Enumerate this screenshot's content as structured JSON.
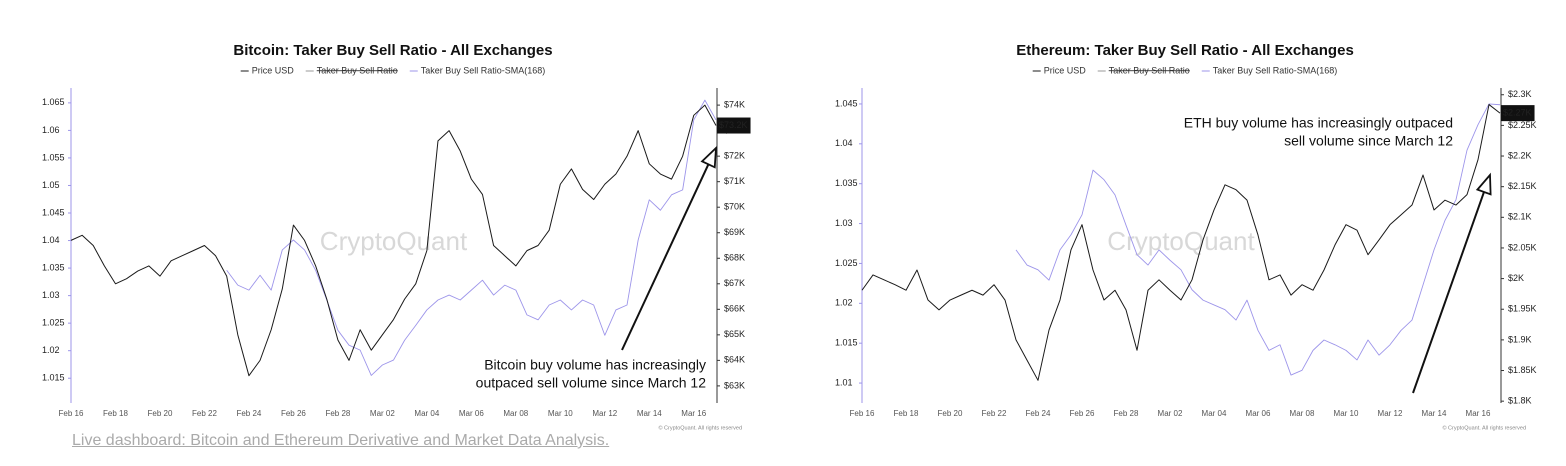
{
  "chart_data": [
    {
      "type": "line",
      "title": "Bitcoin: Taker Buy Sell Ratio - All Exchanges",
      "categories": [
        "Feb 16",
        null,
        null,
        null,
        "Feb 18",
        null,
        null,
        null,
        "Feb 20",
        null,
        null,
        null,
        "Feb 22",
        null,
        null,
        null,
        "Feb 24",
        null,
        null,
        null,
        "Feb 26",
        null,
        null,
        null,
        "Feb 28",
        null,
        null,
        null,
        "Mar 02",
        null,
        null,
        null,
        "Mar 04",
        null,
        null,
        null,
        "Mar 06",
        null,
        null,
        null,
        "Mar 08",
        null,
        null,
        null,
        "Mar 10",
        null,
        null,
        null,
        "Mar 12",
        null,
        null,
        null,
        "Mar 14",
        null,
        null,
        null,
        "Mar 16",
        null,
        null
      ],
      "series": [
        {
          "name": "Price USD",
          "color": "#1a1a1a",
          "axis": "y2",
          "values": [
            68700,
            68900,
            68500,
            67700,
            67000,
            67200,
            67500,
            67700,
            67300,
            67900,
            68100,
            68300,
            68500,
            68100,
            67300,
            65000,
            63400,
            64000,
            65200,
            66800,
            69300,
            68700,
            67700,
            66400,
            64800,
            64000,
            65200,
            64400,
            65000,
            65600,
            66400,
            67000,
            68300,
            72600,
            73000,
            72200,
            71100,
            70500,
            68500,
            68100,
            67700,
            68300,
            68500,
            69100,
            70900,
            71500,
            70700,
            70300,
            70900,
            71300,
            72000,
            73000,
            71700,
            71300,
            71100,
            72000,
            73600,
            74000,
            73200
          ]
        },
        {
          "name": "Taker Buy Sell Ratio",
          "color": "#9a9a9a",
          "hidden": true
        },
        {
          "name": "Taker Buy Sell Ratio-SMA(168)",
          "color": "#9d95ea",
          "values": [
            null,
            null,
            null,
            null,
            null,
            null,
            null,
            null,
            null,
            null,
            null,
            null,
            null,
            null,
            1.0346,
            1.0319,
            1.031,
            1.0337,
            1.031,
            1.0383,
            1.0401,
            1.0383,
            1.0346,
            1.0292,
            1.0237,
            1.021,
            1.0201,
            1.0155,
            1.0174,
            1.0183,
            1.0219,
            1.0246,
            1.0274,
            1.0292,
            1.0301,
            1.0292,
            1.031,
            1.0328,
            1.0301,
            1.0319,
            1.031,
            1.0265,
            1.0256,
            1.0283,
            1.0292,
            1.0274,
            1.0292,
            1.0283,
            1.0228,
            1.0274,
            1.0283,
            1.0401,
            1.0474,
            1.0455,
            1.0483,
            1.0492,
            1.0619,
            1.0655,
            1.0619
          ]
        }
      ],
      "ylim": [
        1.0105,
        1.0677
      ],
      "yticks": [
        1.015,
        1.02,
        1.025,
        1.03,
        1.035,
        1.04,
        1.045,
        1.05,
        1.055,
        1.06,
        1.065
      ],
      "y2lim": [
        62330,
        74670
      ],
      "y2ticks": [
        {
          "value": 63000,
          "label": "$63K"
        },
        {
          "value": 64000,
          "label": "$64K"
        },
        {
          "value": 65000,
          "label": "$65K"
        },
        {
          "value": 66000,
          "label": "$66K"
        },
        {
          "value": 67000,
          "label": "$67K"
        },
        {
          "value": 68000,
          "label": "$68K"
        },
        {
          "value": 69000,
          "label": "$69K"
        },
        {
          "value": 70000,
          "label": "$70K"
        },
        {
          "value": 71000,
          "label": "$71K"
        },
        {
          "value": 72000,
          "label": "$72K"
        },
        {
          "value": 73000,
          "label": "$73K"
        },
        {
          "value": 74000,
          "label": "$74K"
        }
      ],
      "last_price": {
        "value": 73200,
        "label": "$73.2K"
      },
      "annotation": [
        "Bitcoin buy volume has increasingly",
        "outpaced sell volume since March 12"
      ],
      "watermark": "CryptoQuant",
      "credit": "© CryptoQuant. All rights reserved"
    },
    {
      "type": "line",
      "title": "Ethereum: Taker Buy Sell Ratio - All Exchanges",
      "categories": [
        "Feb 16",
        null,
        null,
        null,
        "Feb 18",
        null,
        null,
        null,
        "Feb 20",
        null,
        null,
        null,
        "Feb 22",
        null,
        null,
        null,
        "Feb 24",
        null,
        null,
        null,
        "Feb 26",
        null,
        null,
        null,
        "Feb 28",
        null,
        null,
        null,
        "Mar 02",
        null,
        null,
        null,
        "Mar 04",
        null,
        null,
        null,
        "Mar 06",
        null,
        null,
        null,
        "Mar 08",
        null,
        null,
        null,
        "Mar 10",
        null,
        null,
        null,
        "Mar 12",
        null,
        null,
        null,
        "Mar 14",
        null,
        null,
        null,
        "Mar 16",
        null,
        null
      ],
      "series": [
        {
          "name": "Price USD",
          "color": "#1a1a1a",
          "axis": "y2",
          "values": [
            1981,
            2006,
            1998,
            1990,
            1981,
            2014,
            1965,
            1949,
            1965,
            1973,
            1981,
            1973,
            1990,
            1965,
            1900,
            1867,
            1834,
            1916,
            1965,
            2047,
            2088,
            2014,
            1965,
            1981,
            1949,
            1883,
            1981,
            1998,
            1981,
            1965,
            1998,
            2063,
            2112,
            2153,
            2145,
            2128,
            2071,
            1998,
            2006,
            1973,
            1990,
            1981,
            2014,
            2055,
            2088,
            2079,
            2039,
            2063,
            2088,
            2104,
            2120,
            2169,
            2112,
            2128,
            2120,
            2137,
            2194,
            2284,
            2270
          ]
        },
        {
          "name": "Taker Buy Sell Ratio",
          "color": "#9a9a9a",
          "hidden": true
        },
        {
          "name": "Taker Buy Sell Ratio-SMA(168)",
          "color": "#9d95ea",
          "values": [
            null,
            null,
            null,
            null,
            null,
            null,
            null,
            null,
            null,
            null,
            null,
            null,
            null,
            null,
            1.0267,
            1.0248,
            1.0242,
            1.0229,
            1.0267,
            1.0286,
            1.0311,
            1.0367,
            1.0355,
            1.0336,
            1.0298,
            1.0261,
            1.0248,
            1.0267,
            1.0254,
            1.0242,
            1.0217,
            1.0204,
            1.0198,
            1.0192,
            1.0179,
            1.0204,
            1.0166,
            1.0141,
            1.0148,
            1.011,
            1.0116,
            1.0141,
            1.0154,
            1.0148,
            1.0141,
            1.0129,
            1.0154,
            1.0135,
            1.0148,
            1.0166,
            1.0179,
            1.0223,
            1.0267,
            1.0304,
            1.033,
            1.0392,
            1.0424,
            1.045,
            1.0449
          ]
        }
      ],
      "ylim": [
        1.0075,
        1.047
      ],
      "yticks": [
        1.01,
        1.015,
        1.02,
        1.025,
        1.03,
        1.035,
        1.04,
        1.045
      ],
      "y2lim": [
        1797,
        2311
      ],
      "y2ticks": [
        {
          "value": 1800,
          "label": "$1.8K"
        },
        {
          "value": 1850,
          "label": "$1.85K"
        },
        {
          "value": 1900,
          "label": "$1.9K"
        },
        {
          "value": 1950,
          "label": "$1.95K"
        },
        {
          "value": 2000,
          "label": "$2K"
        },
        {
          "value": 2050,
          "label": "$2.05K"
        },
        {
          "value": 2100,
          "label": "$2.1K"
        },
        {
          "value": 2150,
          "label": "$2.15K"
        },
        {
          "value": 2200,
          "label": "$2.2K"
        },
        {
          "value": 2250,
          "label": "$2.25K"
        },
        {
          "value": 2300,
          "label": "$2.3K"
        }
      ],
      "last_price": {
        "value": 2270,
        "label": "$2.27K"
      },
      "annotation": [
        "ETH buy volume has increasingly outpaced",
        "sell volume since March 12"
      ],
      "watermark": "CryptoQuant",
      "credit": "© CryptoQuant. All rights reserved"
    }
  ],
  "footer_link": "Live dashboard: Bitcoin and Ethereum Derivative and Market Data Analysis."
}
